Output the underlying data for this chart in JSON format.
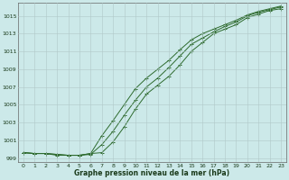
{
  "xlabel": "Graphe pression niveau de la mer (hPa)",
  "background_color": "#cce9e9",
  "grid_color": "#b0c8c8",
  "line_color": "#2d6a2d",
  "hours": [
    0,
    1,
    2,
    3,
    4,
    5,
    6,
    7,
    8,
    9,
    10,
    11,
    12,
    13,
    14,
    15,
    16,
    17,
    18,
    19,
    20,
    21,
    22,
    23
  ],
  "series1": [
    999.6,
    999.5,
    999.5,
    999.4,
    999.3,
    999.3,
    999.5,
    999.6,
    1000.8,
    1002.5,
    1004.5,
    1006.2,
    1007.2,
    1008.2,
    1009.5,
    1011.0,
    1012.0,
    1013.0,
    1013.5,
    1014.0,
    1014.8,
    1015.2,
    1015.6,
    1015.8
  ],
  "series2": [
    999.6,
    999.5,
    999.5,
    999.3,
    999.3,
    999.3,
    999.4,
    1000.5,
    1002.0,
    1003.8,
    1005.5,
    1007.0,
    1008.0,
    1009.2,
    1010.5,
    1011.8,
    1012.5,
    1013.2,
    1013.8,
    1014.3,
    1015.0,
    1015.4,
    1015.7,
    1016.0
  ],
  "series3": [
    999.6,
    999.5,
    999.5,
    999.4,
    999.3,
    999.3,
    999.5,
    1001.5,
    1003.2,
    1005.0,
    1006.8,
    1008.0,
    1009.0,
    1010.0,
    1011.2,
    1012.3,
    1013.0,
    1013.5,
    1014.0,
    1014.5,
    1015.1,
    1015.5,
    1015.8,
    1016.1
  ],
  "ylim": [
    998.5,
    1016.5
  ],
  "yticks": [
    999,
    1001,
    1003,
    1005,
    1007,
    1009,
    1011,
    1013,
    1015
  ],
  "xlim": [
    -0.5,
    23.5
  ]
}
